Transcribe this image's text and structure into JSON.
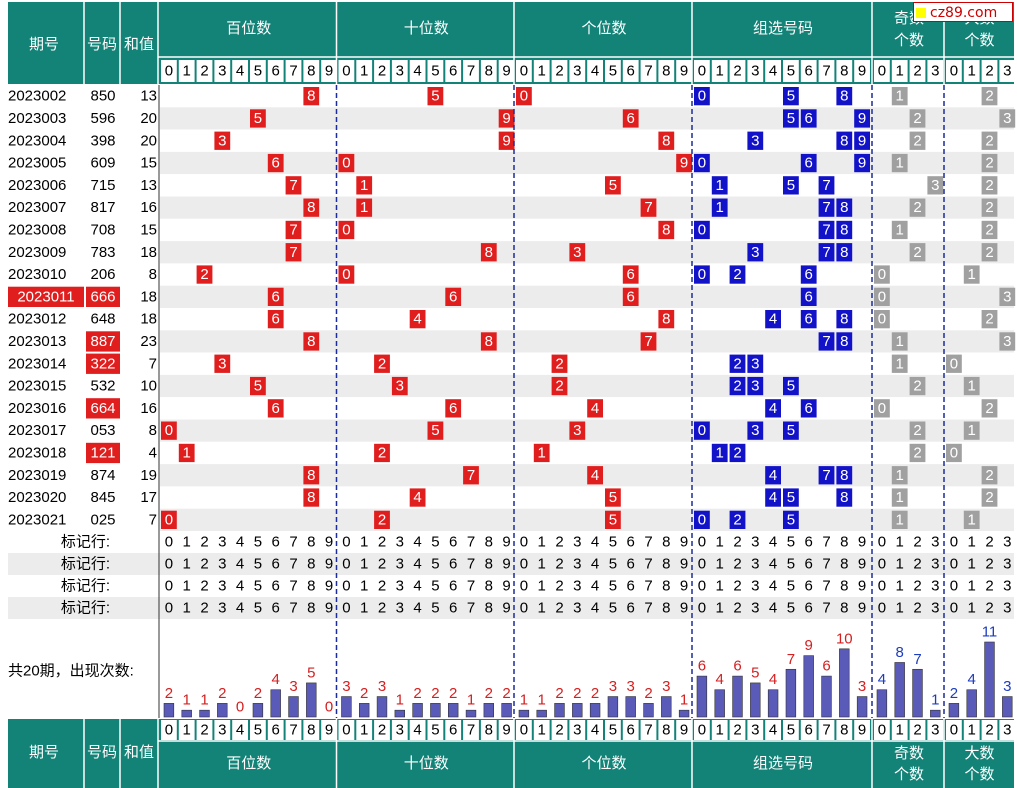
{
  "header": {
    "issue": "期号",
    "number": "号码",
    "sum": "和值",
    "groups": [
      "百位数",
      "十位数",
      "个位数",
      "组选号码"
    ],
    "odd_line1": "奇数",
    "odd_line2": "个数",
    "big_line1": "大数",
    "big_line2": "个数"
  },
  "logo": "cz89.com",
  "rows": [
    {
      "issue": "2023002",
      "num": "850",
      "sum": "13"
    },
    {
      "issue": "2023003",
      "num": "596",
      "sum": "20"
    },
    {
      "issue": "2023004",
      "num": "398",
      "sum": "20"
    },
    {
      "issue": "2023005",
      "num": "609",
      "sum": "15"
    },
    {
      "issue": "2023006",
      "num": "715",
      "sum": "13"
    },
    {
      "issue": "2023007",
      "num": "817",
      "sum": "16"
    },
    {
      "issue": "2023008",
      "num": "708",
      "sum": "15"
    },
    {
      "issue": "2023009",
      "num": "783",
      "sum": "18"
    },
    {
      "issue": "2023010",
      "num": "206",
      "sum": "8"
    },
    {
      "issue": "2023011",
      "num": "666",
      "sum": "18",
      "hl_issue": true,
      "hl_num": true
    },
    {
      "issue": "2023012",
      "num": "648",
      "sum": "18"
    },
    {
      "issue": "2023013",
      "num": "887",
      "sum": "23",
      "hl_num": true
    },
    {
      "issue": "2023014",
      "num": "322",
      "sum": "7",
      "hl_num": true
    },
    {
      "issue": "2023015",
      "num": "532",
      "sum": "10"
    },
    {
      "issue": "2023016",
      "num": "664",
      "sum": "16",
      "hl_num": true
    },
    {
      "issue": "2023017",
      "num": "053",
      "sum": "8"
    },
    {
      "issue": "2023018",
      "num": "121",
      "sum": "4",
      "hl_num": true
    },
    {
      "issue": "2023019",
      "num": "874",
      "sum": "19"
    },
    {
      "issue": "2023020",
      "num": "845",
      "sum": "17"
    },
    {
      "issue": "2023021",
      "num": "025",
      "sum": "7"
    }
  ],
  "odd_count": [
    1,
    2,
    2,
    1,
    3,
    2,
    1,
    2,
    0,
    0,
    0,
    1,
    1,
    2,
    0,
    2,
    2,
    1,
    1,
    1
  ],
  "big_count": [
    2,
    3,
    2,
    2,
    2,
    2,
    2,
    2,
    1,
    3,
    2,
    3,
    0,
    1,
    2,
    1,
    0,
    2,
    2,
    1
  ],
  "marker_label": "标记行:",
  "marker_rows": 4,
  "stats_label": "共20期，出现次数:",
  "counts": {
    "hundreds": [
      2,
      1,
      1,
      2,
      0,
      2,
      4,
      3,
      5,
      0
    ],
    "tens": [
      3,
      2,
      3,
      1,
      2,
      2,
      2,
      1,
      2,
      2
    ],
    "ones": [
      1,
      1,
      2,
      2,
      2,
      3,
      3,
      2,
      3,
      1
    ],
    "group": [
      6,
      4,
      6,
      5,
      4,
      7,
      9,
      6,
      10,
      3
    ],
    "odd": [
      4,
      8,
      7,
      1
    ],
    "big": [
      2,
      4,
      11,
      3
    ]
  },
  "colors": {
    "header_bg": "#138378",
    "red": "#e01e1e",
    "blue": "#1212c8",
    "gray": "#a0a0a0",
    "bar": "#5a5ab8",
    "count_text": "#d42020",
    "count_text_alt": "#1c3cc0"
  }
}
